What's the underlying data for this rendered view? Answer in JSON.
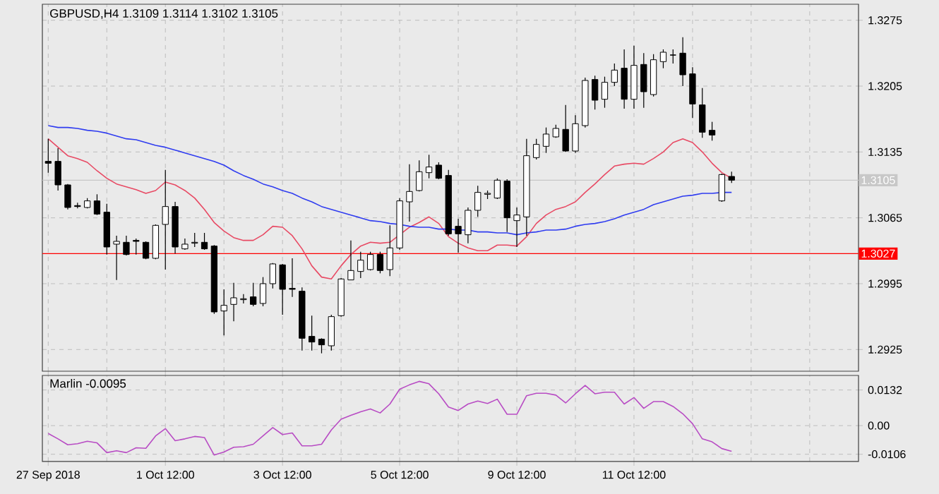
{
  "chart_data": [
    {
      "type": "candlestick",
      "title": "GBPUSD,H4 1.3109 1.3114 1.3102 1.3105",
      "categories": [
        null,
        null,
        null,
        null,
        null,
        null,
        null,
        null,
        null,
        null,
        null,
        null,
        null,
        null,
        null,
        null,
        null,
        null,
        null,
        null,
        null,
        null,
        null,
        null,
        null,
        null,
        null,
        null,
        null,
        null,
        null,
        null,
        null,
        null,
        null,
        null,
        null,
        null,
        null,
        null,
        null,
        null,
        null,
        null,
        null,
        null,
        null,
        null,
        null,
        null,
        null,
        null,
        null,
        null,
        null,
        null,
        null,
        null,
        null,
        null,
        null,
        null,
        null,
        null,
        null,
        null,
        null,
        null,
        null,
        null,
        null
      ],
      "ohlc": [
        [
          1.3125,
          1.3149,
          1.3113,
          1.3123
        ],
        [
          1.3125,
          1.3139,
          1.3094,
          1.31
        ],
        [
          1.31,
          1.3101,
          1.3074,
          1.3076
        ],
        [
          1.3078,
          1.3081,
          1.3075,
          1.3077
        ],
        [
          1.3076,
          1.3086,
          1.3075,
          1.3083
        ],
        [
          1.3083,
          1.309,
          1.3068,
          1.3069
        ],
        [
          1.3071,
          1.308,
          1.3026,
          1.3034
        ],
        [
          1.3037,
          1.3046,
          1.2999,
          1.304
        ],
        [
          1.3039,
          1.3046,
          1.3025,
          1.3026
        ],
        [
          1.3041,
          1.3043,
          1.3026,
          1.304
        ],
        [
          1.3039,
          1.304,
          1.3021,
          1.3022
        ],
        [
          1.3022,
          1.3058,
          1.3021,
          1.3057
        ],
        [
          1.3058,
          1.3116,
          1.301,
          1.3077
        ],
        [
          1.3077,
          1.3082,
          1.3027,
          1.3034
        ],
        [
          1.3032,
          1.3043,
          1.3031,
          1.3037
        ],
        [
          1.3038,
          1.3049,
          1.3034,
          1.3039
        ],
        [
          1.3039,
          1.3049,
          1.3031,
          1.3032
        ],
        [
          1.3035,
          1.3036,
          1.2963,
          1.2965
        ],
        [
          1.2966,
          1.2989,
          1.294,
          1.2972
        ],
        [
          1.2973,
          1.2996,
          1.2955,
          1.298
        ],
        [
          1.2978,
          1.2984,
          1.2974,
          1.2979
        ],
        [
          1.2981,
          1.2996,
          1.2971,
          1.2973
        ],
        [
          1.2974,
          1.3002,
          1.2971,
          1.2995
        ],
        [
          1.2995,
          1.3017,
          1.299,
          1.3016
        ],
        [
          1.3015,
          1.3016,
          1.2962,
          1.2989
        ],
        [
          1.299,
          1.3022,
          1.2981,
          1.2989
        ],
        [
          1.2987,
          1.2991,
          1.2924,
          1.2937
        ],
        [
          1.2939,
          1.2961,
          1.2924,
          1.2933
        ],
        [
          1.2936,
          1.2937,
          1.2921,
          1.293
        ],
        [
          1.2929,
          1.2962,
          1.2924,
          1.296
        ],
        [
          1.2961,
          1.3001,
          1.296,
          1.3
        ],
        [
          1.2999,
          1.3041,
          1.2999,
          1.3009
        ],
        [
          1.3008,
          1.3029,
          1.3001,
          1.302
        ],
        [
          1.301,
          1.3029,
          1.3009,
          1.3026
        ],
        [
          1.3026,
          1.3029,
          1.3006,
          1.3009
        ],
        [
          1.301,
          1.3057,
          1.3003,
          1.3033
        ],
        [
          1.3033,
          1.3086,
          1.3031,
          1.3083
        ],
        [
          1.3082,
          1.3122,
          1.3061,
          1.3093
        ],
        [
          1.3094,
          1.3126,
          1.3093,
          1.3114
        ],
        [
          1.3113,
          1.3132,
          1.3107,
          1.3119
        ],
        [
          1.3121,
          1.3124,
          1.3106,
          1.3107
        ],
        [
          1.311,
          1.3116,
          1.3046,
          1.3048
        ],
        [
          1.3056,
          1.3064,
          1.3028,
          1.3048
        ],
        [
          1.3047,
          1.3076,
          1.3038,
          1.3073
        ],
        [
          1.3073,
          1.3099,
          1.3066,
          1.3092
        ],
        [
          1.309,
          1.3094,
          1.3085,
          1.3091
        ],
        [
          1.3086,
          1.3107,
          1.3085,
          1.3105
        ],
        [
          1.3104,
          1.3106,
          1.305,
          1.3065
        ],
        [
          1.3062,
          1.3076,
          1.3034,
          1.3068
        ],
        [
          1.3066,
          1.3149,
          1.3046,
          1.3131
        ],
        [
          1.3129,
          1.3149,
          1.3127,
          1.3143
        ],
        [
          1.3141,
          1.3161,
          1.3134,
          1.3154
        ],
        [
          1.3151,
          1.3164,
          1.315,
          1.316
        ],
        [
          1.3159,
          1.3185,
          1.3135,
          1.3136
        ],
        [
          1.3136,
          1.3174,
          1.3134,
          1.3165
        ],
        [
          1.3163,
          1.3214,
          1.3161,
          1.3211
        ],
        [
          1.3212,
          1.3216,
          1.318,
          1.319
        ],
        [
          1.3191,
          1.3215,
          1.3182,
          1.3209
        ],
        [
          1.3209,
          1.3229,
          1.3205,
          1.3222
        ],
        [
          1.3224,
          1.3244,
          1.3181,
          1.3191
        ],
        [
          1.3191,
          1.3248,
          1.3181,
          1.3227
        ],
        [
          1.3228,
          1.324,
          1.3182,
          1.3199
        ],
        [
          1.3196,
          1.3239,
          1.3194,
          1.3233
        ],
        [
          1.3231,
          1.3244,
          1.3224,
          1.3241
        ],
        [
          1.3238,
          1.3244,
          1.3229,
          1.3238
        ],
        [
          1.324,
          1.3257,
          1.3205,
          1.3217
        ],
        [
          1.3218,
          1.3225,
          1.3171,
          1.3186
        ],
        [
          1.3185,
          1.3203,
          1.315,
          1.3156
        ],
        [
          1.3158,
          1.3167,
          1.3147,
          1.3153
        ],
        [
          1.3083,
          1.3112,
          1.3082,
          1.3111
        ],
        [
          1.3109,
          1.3114,
          1.3102,
          1.3105
        ]
      ],
      "series": [
        {
          "type": "line",
          "color": "#e84a64",
          "values": [
            1.3149,
            1.314,
            1.3131,
            1.3128,
            1.3124,
            1.3115,
            1.3107,
            1.3101,
            1.3098,
            1.3095,
            1.3091,
            1.3094,
            1.3103,
            1.31,
            1.3094,
            1.3086,
            1.3074,
            1.306,
            1.3051,
            1.3044,
            1.3041,
            1.3041,
            1.3047,
            1.3056,
            1.3055,
            1.3046,
            1.3032,
            1.3014,
            1.3002,
            1.3,
            1.3014,
            1.3026,
            1.3035,
            1.3039,
            1.3038,
            1.3039,
            1.3047,
            1.3055,
            1.306,
            1.3066,
            1.3059,
            1.3045,
            1.3038,
            1.3033,
            1.303,
            1.303,
            1.3036,
            1.3036,
            1.3035,
            1.3045,
            1.3059,
            1.3068,
            1.3074,
            1.3077,
            1.3082,
            1.3092,
            1.3101,
            1.3111,
            1.312,
            1.3122,
            1.3123,
            1.3122,
            1.3128,
            1.3135,
            1.3145,
            1.3149,
            1.3145,
            1.3135,
            1.3123,
            1.3113,
            1.3107
          ]
        },
        {
          "type": "line",
          "color": "#2f3cf0",
          "values": [
            1.3163,
            1.3161,
            1.3161,
            1.316,
            1.3158,
            1.3157,
            1.3155,
            1.3152,
            1.3149,
            1.3148,
            1.3145,
            1.3142,
            1.314,
            1.3137,
            1.3134,
            1.3131,
            1.3128,
            1.3125,
            1.3121,
            1.3115,
            1.311,
            1.3106,
            1.3101,
            1.3098,
            1.3094,
            1.3091,
            1.3086,
            1.3082,
            1.3077,
            1.3074,
            1.3071,
            1.3068,
            1.3065,
            1.3062,
            1.3061,
            1.3059,
            1.3058,
            1.3056,
            1.3055,
            1.3055,
            1.3053,
            1.3053,
            1.3052,
            1.3052,
            1.305,
            1.305,
            1.3049,
            1.3049,
            1.3047,
            1.3049,
            1.305,
            1.3052,
            1.3052,
            1.3053,
            1.3056,
            1.3058,
            1.3059,
            1.3061,
            1.3064,
            1.3068,
            1.3071,
            1.3074,
            1.3079,
            1.3082,
            1.3085,
            1.3088,
            1.3089,
            1.3091,
            1.3091,
            1.3092,
            1.3092
          ]
        }
      ],
      "ylim": [
        1.2902,
        1.3292
      ],
      "yticks": [
        1.3275,
        1.3205,
        1.3135,
        1.3065,
        1.2995,
        1.2925
      ],
      "ref_lines": [
        {
          "axis": "y",
          "value": 1.3027,
          "label": "1.3027",
          "color": "#ff0000"
        },
        {
          "axis": "y",
          "value": 1.3105,
          "label": "1.3105",
          "color": "#c8c8c8"
        }
      ],
      "grid": true
    },
    {
      "type": "line",
      "title": "Marlin -0.0095",
      "categories": [
        "27 Sep 2018",
        null,
        null,
        null,
        null,
        null,
        null,
        null,
        null,
        null,
        null,
        null,
        "1 Oct 12:00",
        null,
        null,
        null,
        null,
        null,
        null,
        null,
        null,
        null,
        null,
        null,
        "3 Oct 12:00",
        null,
        null,
        null,
        null,
        null,
        null,
        null,
        null,
        null,
        null,
        null,
        "5 Oct 12:00",
        null,
        null,
        null,
        null,
        null,
        null,
        null,
        null,
        null,
        null,
        null,
        "9 Oct 12:00",
        null,
        null,
        null,
        null,
        null,
        null,
        null,
        null,
        null,
        null,
        null,
        "11 Oct 12:00",
        null,
        null,
        null,
        null,
        null,
        null,
        null,
        null,
        null,
        null
      ],
      "color": "#b84cc4",
      "values": [
        -0.0029,
        -0.0049,
        -0.0071,
        -0.0067,
        -0.0058,
        -0.0064,
        -0.01,
        -0.0093,
        -0.01,
        -0.0082,
        -0.0084,
        -0.0038,
        -0.0011,
        -0.0056,
        -0.0049,
        -0.004,
        -0.0044,
        -0.0109,
        -0.0098,
        -0.008,
        -0.0078,
        -0.0069,
        -0.0038,
        -0.0007,
        -0.0033,
        -0.0027,
        -0.0075,
        -0.0075,
        -0.0069,
        -0.0016,
        0.0024,
        0.0038,
        0.0051,
        0.0062,
        0.0047,
        0.008,
        0.0135,
        0.0151,
        0.0164,
        0.0155,
        0.0118,
        0.0069,
        0.0056,
        0.008,
        0.0091,
        0.0082,
        0.0098,
        0.0042,
        0.0042,
        0.0111,
        0.012,
        0.012,
        0.0113,
        0.0084,
        0.0118,
        0.0149,
        0.0118,
        0.0124,
        0.0124,
        0.008,
        0.0104,
        0.0064,
        0.0089,
        0.0089,
        0.0071,
        0.0044,
        0.0007,
        -0.0049,
        -0.006,
        -0.0085,
        -0.0095
      ],
      "ylim": [
        -0.0133,
        0.0186
      ],
      "yticks": [
        0.0132,
        {
          "value": 0,
          "label": "0.00"
        },
        -0.0106
      ],
      "grid": true
    }
  ]
}
